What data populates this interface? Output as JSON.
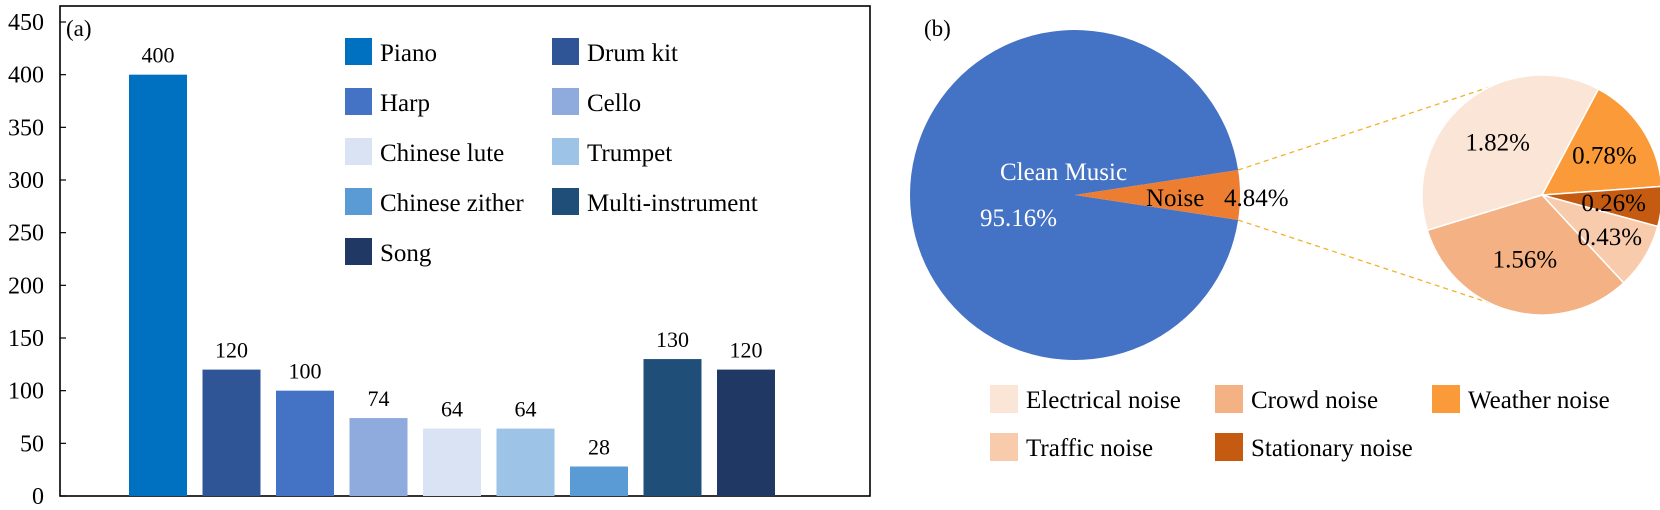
{
  "chart_data": [
    {
      "type": "bar",
      "panel_label": "(a)",
      "title": "",
      "xlabel": "",
      "ylabel": "",
      "ylim": [
        0,
        450
      ],
      "yticks": [
        0,
        50,
        100,
        150,
        200,
        250,
        300,
        350,
        400,
        450
      ],
      "categories": [
        "Piano",
        "Drum kit",
        "Harp",
        "Cello",
        "Chinese lute",
        "Trumpet",
        "Chinese zither",
        "Multi-instrument",
        "Song"
      ],
      "values": [
        400,
        120,
        100,
        74,
        64,
        64,
        28,
        130,
        120
      ],
      "colors": [
        "#0070c0",
        "#2f5597",
        "#4472c4",
        "#8faadc",
        "#dae3f3",
        "#9dc3e6",
        "#5b9bd5",
        "#1f4e79",
        "#203864"
      ],
      "legend": {
        "placement": "top-right",
        "entries": [
          "Piano",
          "Drum kit",
          "Harp",
          "Cello",
          "Chinese lute",
          "Trumpet",
          "Chinese zither",
          "Multi-instrument",
          "Song"
        ]
      },
      "grid": false
    },
    {
      "type": "pie",
      "panel_label": "(b)",
      "title": "",
      "main": {
        "slices": [
          {
            "label": "Clean Music",
            "value_label": "95.16%",
            "value": 95.16,
            "color": "#4472c4"
          },
          {
            "label": "Noise",
            "value_label": "4.84%",
            "value": 4.84,
            "color": "#ed7d31"
          }
        ]
      },
      "breakdown": {
        "slices": [
          {
            "name": "Weather noise",
            "value_label": "0.78%",
            "value": 0.78,
            "color": "#fa9a38"
          },
          {
            "name": "Stationary noise",
            "value_label": "0.26%",
            "value": 0.26,
            "color": "#c55a11"
          },
          {
            "name": "Traffic noise",
            "value_label": "0.43%",
            "value": 0.43,
            "color": "#f8cbad"
          },
          {
            "name": "Crowd noise",
            "value_label": "1.56%",
            "value": 1.56,
            "color": "#f4b183"
          },
          {
            "name": "Electrical noise",
            "value_label": "1.82%",
            "value": 1.82,
            "color": "#fbe5d6"
          }
        ]
      },
      "legend": {
        "placement": "bottom",
        "entries": [
          "Electrical noise",
          "Crowd noise",
          "Weather noise",
          "Traffic noise",
          "Stationary noise"
        ]
      }
    }
  ]
}
